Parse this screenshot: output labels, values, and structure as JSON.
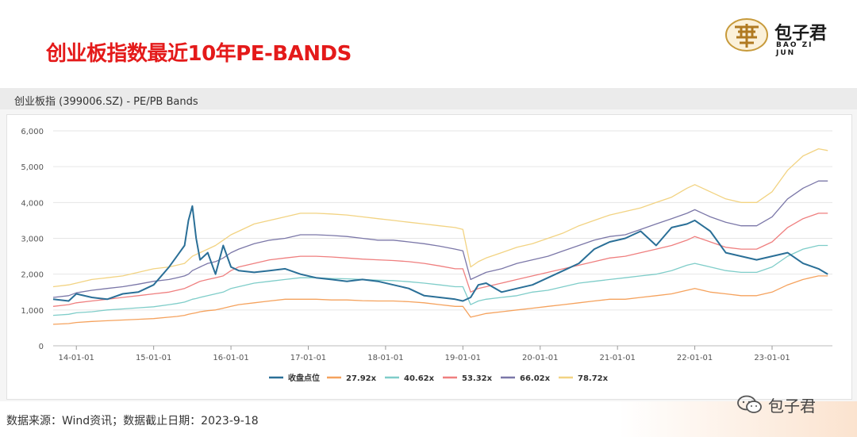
{
  "header": {
    "title": "创业板指数最近10年PE-BANDS",
    "logo_cn": "包子君",
    "logo_en": "BAO ZI JUN"
  },
  "panel": {
    "title": "创业板指 (399006.SZ) - PE/PB Bands"
  },
  "footer": {
    "source": "数据来源：Wind资讯；数据截止日期：2023-9-18"
  },
  "watermark": {
    "text": "包子君"
  },
  "chart_data": {
    "type": "line",
    "title": "",
    "xlabel": "",
    "ylabel": "",
    "ylim": [
      0,
      6000
    ],
    "yticks": [
      0,
      1000,
      2000,
      3000,
      4000,
      5000,
      6000
    ],
    "ytick_labels": [
      "0",
      "1,000",
      "2,000",
      "3,000",
      "4,000",
      "5,000",
      "6,000"
    ],
    "xlim": [
      2013.7,
      2023.78
    ],
    "xticks": [
      2014,
      2015,
      2016,
      2017,
      2018,
      2019,
      2020,
      2021,
      2022,
      2023
    ],
    "xtick_labels": [
      "14-01-01",
      "15-01-01",
      "16-01-01",
      "17-01-01",
      "18-01-01",
      "19-01-01",
      "20-01-01",
      "21-01-01",
      "22-01-01",
      "23-01-01"
    ],
    "grid": "horizontal",
    "legend_position": "bottom",
    "x": [
      2013.7,
      2013.9,
      2014.0,
      2014.2,
      2014.4,
      2014.6,
      2014.8,
      2015.0,
      2015.2,
      2015.3,
      2015.4,
      2015.45,
      2015.5,
      2015.55,
      2015.6,
      2015.7,
      2015.8,
      2015.9,
      2016.0,
      2016.1,
      2016.3,
      2016.5,
      2016.7,
      2016.9,
      2017.1,
      2017.3,
      2017.5,
      2017.7,
      2017.9,
      2018.1,
      2018.3,
      2018.5,
      2018.7,
      2018.9,
      2019.0,
      2019.1,
      2019.2,
      2019.3,
      2019.5,
      2019.7,
      2019.9,
      2020.1,
      2020.3,
      2020.5,
      2020.7,
      2020.9,
      2021.1,
      2021.3,
      2021.5,
      2021.7,
      2021.9,
      2022.0,
      2022.2,
      2022.4,
      2022.6,
      2022.8,
      2023.0,
      2023.2,
      2023.4,
      2023.6,
      2023.72
    ],
    "series": [
      {
        "name": "收盘点位",
        "color": "#2a6f97",
        "values": [
          1300,
          1250,
          1450,
          1350,
          1300,
          1450,
          1500,
          1700,
          2200,
          2500,
          2800,
          3500,
          3900,
          3000,
          2400,
          2600,
          2000,
          2800,
          2200,
          2100,
          2050,
          2100,
          2150,
          2000,
          1900,
          1850,
          1800,
          1850,
          1800,
          1700,
          1600,
          1400,
          1350,
          1300,
          1250,
          1350,
          1700,
          1750,
          1500,
          1600,
          1700,
          1900,
          2100,
          2300,
          2700,
          2900,
          3000,
          3200,
          2800,
          3300,
          3400,
          3500,
          3200,
          2600,
          2500,
          2400,
          2500,
          2600,
          2300,
          2150,
          2000
        ]
      },
      {
        "name": "27.92x",
        "color": "#f5a25d",
        "values": [
          600,
          620,
          650,
          680,
          700,
          720,
          740,
          760,
          800,
          820,
          850,
          880,
          900,
          920,
          950,
          980,
          1000,
          1050,
          1100,
          1150,
          1200,
          1250,
          1300,
          1300,
          1300,
          1280,
          1280,
          1260,
          1250,
          1250,
          1230,
          1200,
          1150,
          1100,
          1100,
          800,
          850,
          900,
          950,
          1000,
          1050,
          1100,
          1150,
          1200,
          1250,
          1300,
          1300,
          1350,
          1400,
          1450,
          1550,
          1600,
          1500,
          1450,
          1400,
          1400,
          1500,
          1700,
          1850,
          1950,
          1950
        ]
      },
      {
        "name": "40.62x",
        "color": "#7fcdc9",
        "values": [
          850,
          880,
          920,
          950,
          1000,
          1030,
          1060,
          1090,
          1150,
          1180,
          1220,
          1260,
          1300,
          1320,
          1350,
          1400,
          1450,
          1500,
          1600,
          1650,
          1750,
          1800,
          1850,
          1900,
          1900,
          1880,
          1870,
          1850,
          1830,
          1820,
          1790,
          1750,
          1700,
          1650,
          1650,
          1150,
          1250,
          1300,
          1350,
          1400,
          1500,
          1550,
          1650,
          1750,
          1800,
          1850,
          1900,
          1950,
          2000,
          2100,
          2250,
          2300,
          2200,
          2100,
          2050,
          2050,
          2200,
          2500,
          2700,
          2800,
          2800
        ]
      },
      {
        "name": "53.32x",
        "color": "#ef7f7f",
        "values": [
          1100,
          1150,
          1200,
          1250,
          1300,
          1350,
          1400,
          1450,
          1500,
          1550,
          1600,
          1650,
          1700,
          1750,
          1800,
          1850,
          1900,
          1950,
          2100,
          2200,
          2300,
          2400,
          2450,
          2500,
          2500,
          2480,
          2450,
          2420,
          2400,
          2380,
          2350,
          2300,
          2230,
          2150,
          2150,
          1500,
          1600,
          1650,
          1750,
          1850,
          1950,
          2050,
          2150,
          2250,
          2350,
          2450,
          2500,
          2600,
          2700,
          2800,
          2950,
          3050,
          2900,
          2750,
          2700,
          2700,
          2900,
          3300,
          3550,
          3700,
          3700
        ]
      },
      {
        "name": "66.02x",
        "color": "#7b77a8",
        "values": [
          1350,
          1400,
          1480,
          1550,
          1600,
          1650,
          1720,
          1800,
          1850,
          1900,
          1950,
          2000,
          2100,
          2150,
          2200,
          2300,
          2350,
          2450,
          2600,
          2700,
          2850,
          2950,
          3000,
          3100,
          3100,
          3080,
          3050,
          3000,
          2950,
          2950,
          2900,
          2850,
          2780,
          2700,
          2650,
          1850,
          1950,
          2050,
          2150,
          2300,
          2400,
          2500,
          2650,
          2800,
          2950,
          3050,
          3100,
          3250,
          3400,
          3550,
          3700,
          3800,
          3600,
          3450,
          3350,
          3350,
          3600,
          4100,
          4400,
          4600,
          4600
        ]
      },
      {
        "name": "78.72x",
        "color": "#f2d382",
        "values": [
          1650,
          1700,
          1750,
          1850,
          1900,
          1950,
          2050,
          2150,
          2200,
          2250,
          2300,
          2400,
          2500,
          2550,
          2600,
          2700,
          2800,
          2950,
          3100,
          3200,
          3400,
          3500,
          3600,
          3700,
          3700,
          3680,
          3650,
          3600,
          3550,
          3500,
          3450,
          3400,
          3350,
          3300,
          3250,
          2200,
          2350,
          2450,
          2600,
          2750,
          2850,
          3000,
          3150,
          3350,
          3500,
          3650,
          3750,
          3850,
          4000,
          4150,
          4400,
          4500,
          4300,
          4100,
          4000,
          4000,
          4300,
          4900,
          5300,
          5500,
          5450
        ]
      }
    ]
  }
}
